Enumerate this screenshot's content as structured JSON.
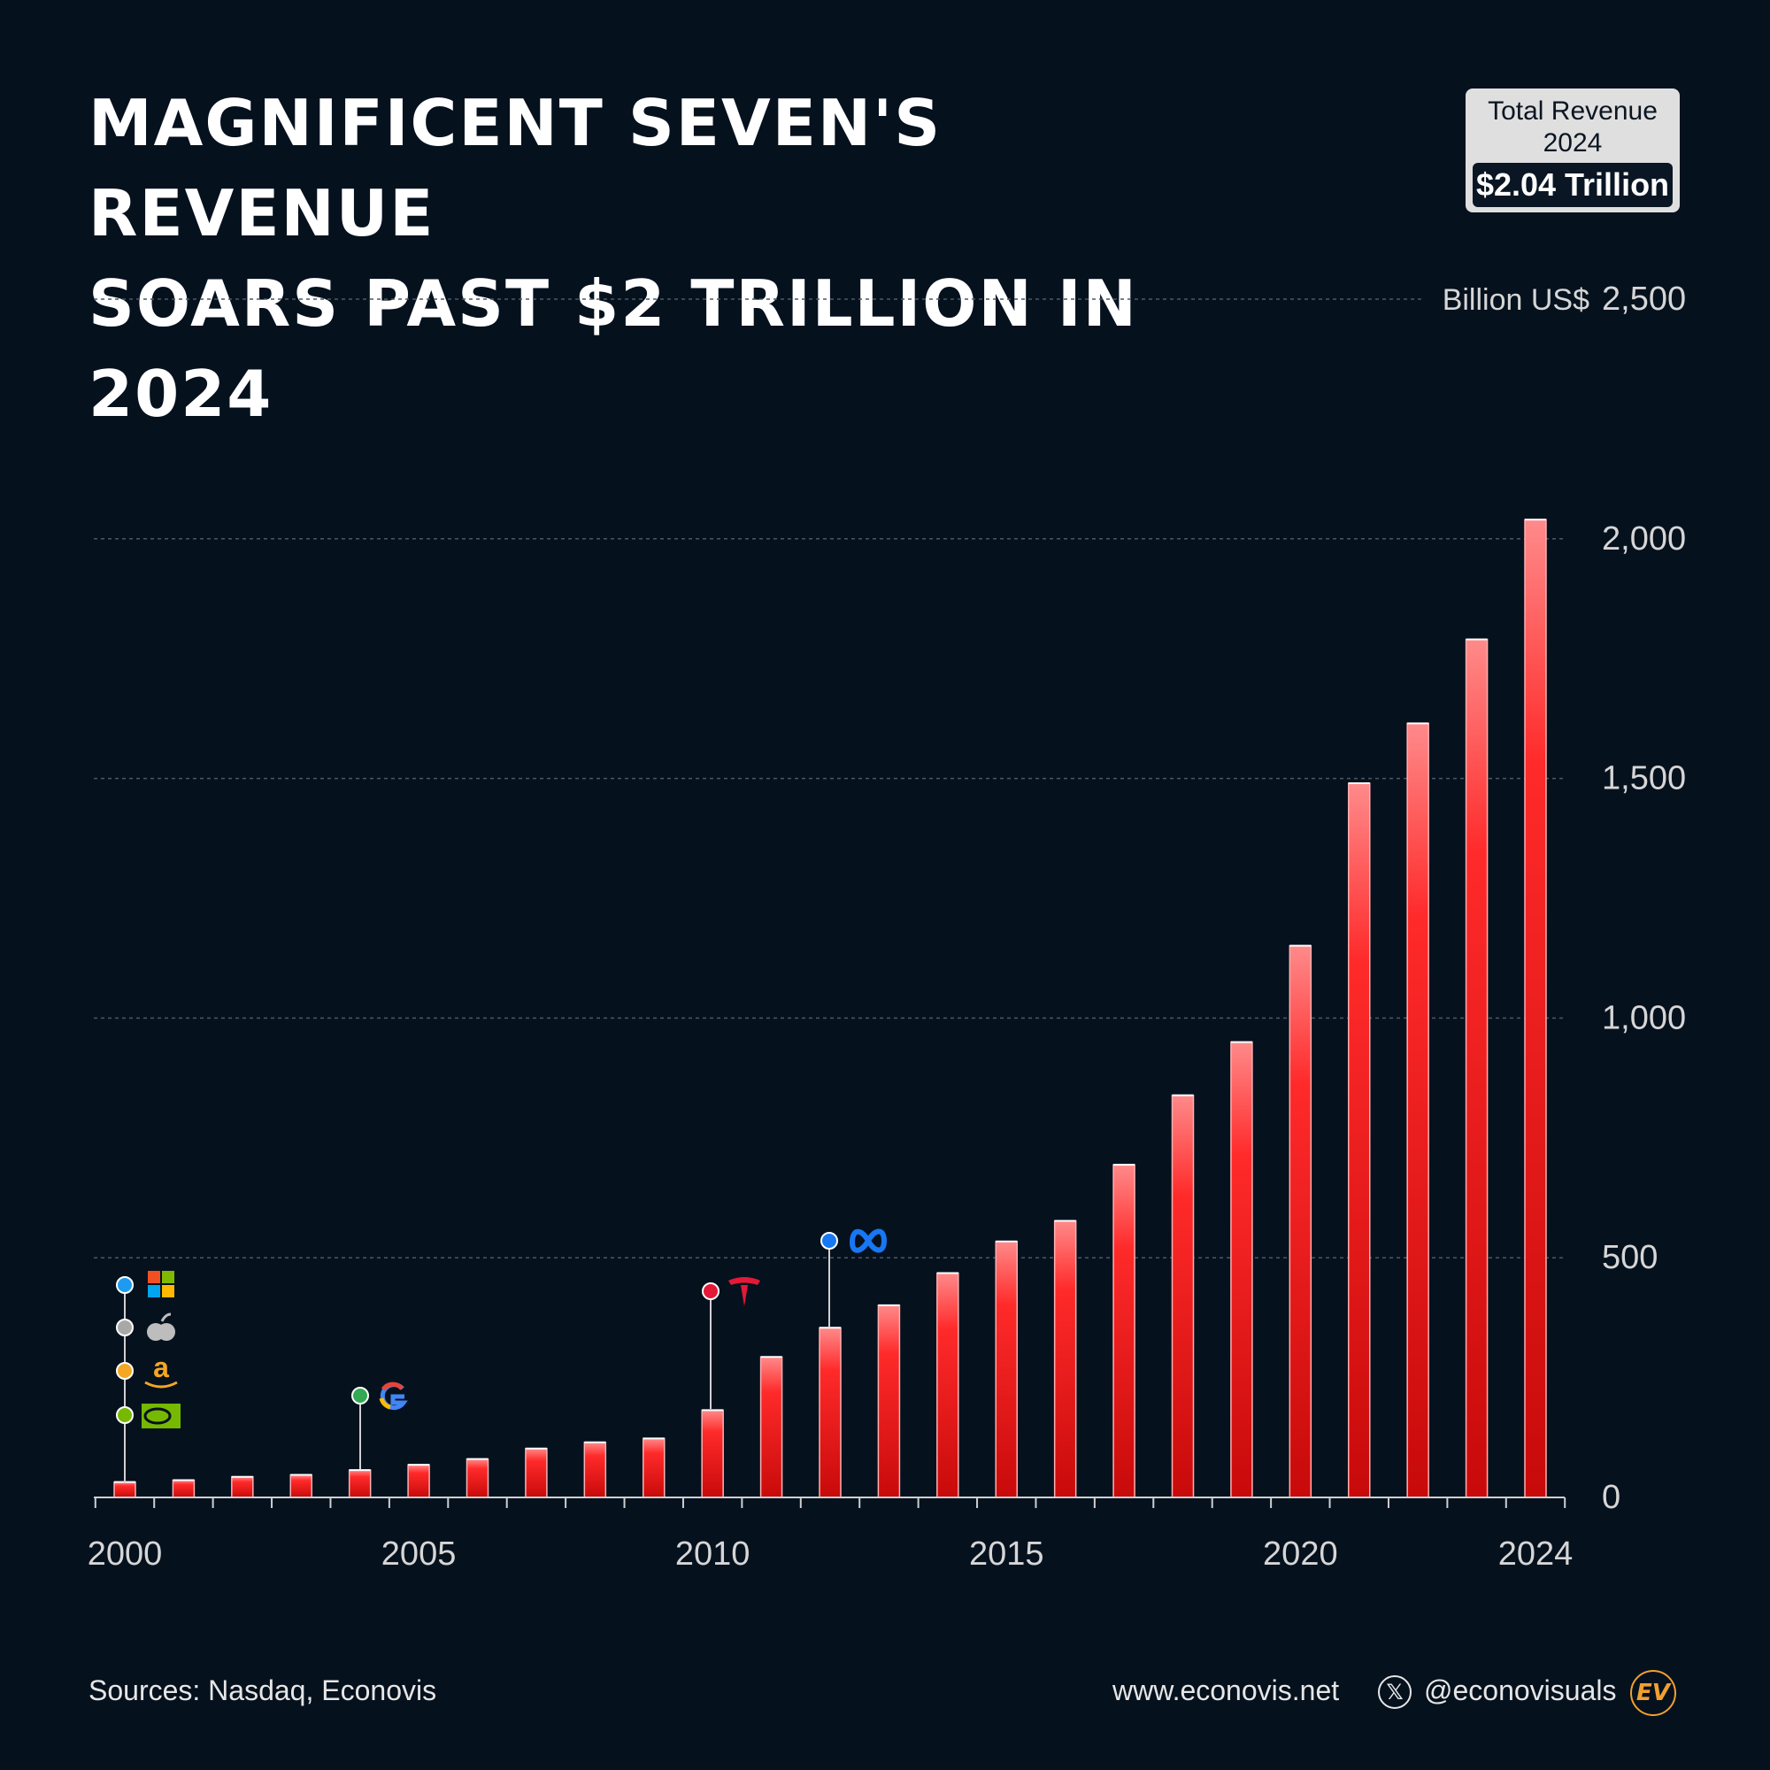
{
  "header": {
    "title_line1": "MAGNIFICENT SEVEN'S REVENUE",
    "title_line2": "SOARS PAST $2 TRILLION IN 2024"
  },
  "total_box": {
    "label_line1": "Total Revenue",
    "label_line2": "2024",
    "value": "$2.04 Trillion"
  },
  "chart_data": {
    "type": "bar",
    "title": "MAGNIFICENT SEVEN'S REVENUE SOARS PAST $2 TRILLION IN 2024",
    "ylabel": "Billion US$",
    "xlabel": "",
    "ylim": [
      0,
      2500
    ],
    "yticks": [
      0,
      500,
      1000,
      1500,
      2000,
      2500
    ],
    "ytick_labels": [
      "0",
      "500",
      "1,000",
      "1,500",
      "2,000",
      "2,500"
    ],
    "xtick_labels": [
      "2000",
      "2005",
      "2010",
      "2015",
      "2020",
      "2024"
    ],
    "grid": true,
    "categories": [
      "2000",
      "2001",
      "2002",
      "2003",
      "2004",
      "2005",
      "2006",
      "2007",
      "2008",
      "2009",
      "2010",
      "2011",
      "2012",
      "2013",
      "2014",
      "2015",
      "2016",
      "2017",
      "2018",
      "2019",
      "2020",
      "2021",
      "2022",
      "2023",
      "2024"
    ],
    "values": [
      32,
      36,
      43,
      47,
      57,
      68,
      80,
      102,
      115,
      123,
      182,
      293,
      354,
      401,
      468,
      534,
      577,
      694,
      839,
      950,
      1151,
      1490,
      1615,
      1790,
      2040
    ],
    "bar_color": "#e8161b",
    "annotations": [
      {
        "year": "2000",
        "companies": [
          "Microsoft",
          "Apple",
          "Amazon",
          "Nvidia"
        ],
        "dot_colors": [
          "#1e9bf0",
          "#a8a8a8",
          "#f5a623",
          "#76b900"
        ]
      },
      {
        "year": "2004",
        "companies": [
          "Google"
        ],
        "dot_colors": [
          "#34a853"
        ]
      },
      {
        "year": "2010",
        "companies": [
          "Tesla"
        ],
        "dot_colors": [
          "#e31937"
        ]
      },
      {
        "year": "2012",
        "companies": [
          "Meta"
        ],
        "dot_colors": [
          "#1877f2"
        ]
      }
    ]
  },
  "footer": {
    "sources": "Sources: Nasdaq, Econovis",
    "website": "www.econovis.net",
    "social_handle": "@econovisuals",
    "social_icon": "x-icon",
    "logo_text": "EV"
  }
}
